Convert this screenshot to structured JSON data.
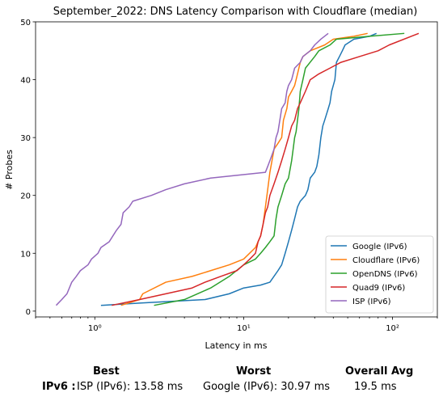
{
  "chart_data": {
    "type": "line",
    "title": "September_2022: DNS Latency Comparison with Cloudflare (median)",
    "xlabel": "Latency in ms",
    "ylabel": "# Probes",
    "xscale": "log",
    "xlim": [
      0.4,
      200
    ],
    "ylim": [
      -1,
      50
    ],
    "xticks": [
      1,
      10,
      100
    ],
    "xtick_labels": [
      "10⁰",
      "10¹",
      "10²"
    ],
    "yticks": [
      0,
      10,
      20,
      30,
      40,
      50
    ],
    "grid": false,
    "legend_position": "lower-right",
    "series": [
      {
        "name": "Google (IPv6)",
        "color": "#1f77b4",
        "points": [
          [
            1.1,
            1
          ],
          [
            2,
            1.4
          ],
          [
            5.5,
            2
          ],
          [
            8,
            3
          ],
          [
            10,
            4
          ],
          [
            13,
            4.5
          ],
          [
            15,
            5
          ],
          [
            17,
            7
          ],
          [
            18,
            8
          ],
          [
            19,
            10
          ],
          [
            20,
            12
          ],
          [
            21,
            14
          ],
          [
            22,
            16
          ],
          [
            23,
            18
          ],
          [
            24,
            19
          ],
          [
            26,
            20
          ],
          [
            27,
            21
          ],
          [
            28,
            23
          ],
          [
            30,
            24
          ],
          [
            31,
            25
          ],
          [
            32,
            27
          ],
          [
            33,
            30
          ],
          [
            34,
            32
          ],
          [
            35,
            33
          ],
          [
            37,
            35
          ],
          [
            38,
            36
          ],
          [
            39,
            38
          ],
          [
            40,
            39
          ],
          [
            41,
            40
          ],
          [
            42,
            43
          ],
          [
            44,
            44
          ],
          [
            46,
            45
          ],
          [
            48,
            46
          ],
          [
            55,
            47
          ],
          [
            70,
            47.5
          ],
          [
            78,
            48
          ]
        ]
      },
      {
        "name": "Cloudflare (IPv6)",
        "color": "#ff7f0e",
        "points": [
          [
            1.5,
            1
          ],
          [
            2,
            2
          ],
          [
            2.1,
            3
          ],
          [
            3,
            5
          ],
          [
            4.5,
            6
          ],
          [
            6,
            7
          ],
          [
            8,
            8
          ],
          [
            10,
            9
          ],
          [
            12,
            11
          ],
          [
            13,
            13
          ],
          [
            13.5,
            15
          ],
          [
            14,
            18
          ],
          [
            14.5,
            21
          ],
          [
            15,
            24
          ],
          [
            15.5,
            26
          ],
          [
            16,
            28
          ],
          [
            17,
            29
          ],
          [
            18,
            30
          ],
          [
            18.5,
            33
          ],
          [
            19.5,
            35
          ],
          [
            20,
            37
          ],
          [
            21,
            38
          ],
          [
            22,
            39
          ],
          [
            22.5,
            40
          ],
          [
            23,
            41
          ],
          [
            24,
            43
          ],
          [
            25,
            44
          ],
          [
            28,
            45
          ],
          [
            35,
            46
          ],
          [
            40,
            47
          ],
          [
            55,
            47.5
          ],
          [
            68,
            48
          ]
        ]
      },
      {
        "name": "OpenDNS (IPv6)",
        "color": "#2ca02c",
        "points": [
          [
            2.5,
            1
          ],
          [
            4,
            2
          ],
          [
            6,
            4
          ],
          [
            8,
            6
          ],
          [
            10,
            8
          ],
          [
            12,
            9
          ],
          [
            13,
            10
          ],
          [
            14,
            11
          ],
          [
            15,
            12
          ],
          [
            16,
            13
          ],
          [
            16.5,
            16
          ],
          [
            17,
            18
          ],
          [
            18,
            20
          ],
          [
            19,
            22
          ],
          [
            20,
            23
          ],
          [
            21,
            26
          ],
          [
            21.5,
            28
          ],
          [
            22,
            30
          ],
          [
            22.5,
            31
          ],
          [
            23,
            33
          ],
          [
            23.5,
            35
          ],
          [
            24,
            38
          ],
          [
            25,
            40
          ],
          [
            26,
            42
          ],
          [
            30,
            44
          ],
          [
            32,
            45
          ],
          [
            38,
            46
          ],
          [
            42,
            47
          ],
          [
            70,
            47.5
          ],
          [
            120,
            48
          ]
        ]
      },
      {
        "name": "Quad9 (IPv6)",
        "color": "#d62728",
        "points": [
          [
            1.3,
            1
          ],
          [
            2,
            2
          ],
          [
            3,
            3
          ],
          [
            4.5,
            4
          ],
          [
            5.5,
            5
          ],
          [
            7,
            6
          ],
          [
            9,
            7
          ],
          [
            10,
            8
          ],
          [
            11,
            9
          ],
          [
            12,
            10
          ],
          [
            12.5,
            12
          ],
          [
            13,
            13
          ],
          [
            13.5,
            15
          ],
          [
            14,
            17
          ],
          [
            14.5,
            18
          ],
          [
            15,
            20
          ],
          [
            16,
            22
          ],
          [
            17,
            24
          ],
          [
            18,
            26
          ],
          [
            19,
            28
          ],
          [
            20,
            30
          ],
          [
            21,
            32
          ],
          [
            22,
            33
          ],
          [
            23,
            35
          ],
          [
            24,
            36
          ],
          [
            26,
            38
          ],
          [
            28,
            40
          ],
          [
            32,
            41
          ],
          [
            38,
            42
          ],
          [
            45,
            43
          ],
          [
            60,
            44
          ],
          [
            80,
            45
          ],
          [
            95,
            46
          ],
          [
            150,
            48
          ]
        ]
      },
      {
        "name": "ISP (IPv6)",
        "color": "#9467bd",
        "points": [
          [
            0.55,
            1
          ],
          [
            0.6,
            2
          ],
          [
            0.65,
            3
          ],
          [
            0.7,
            5
          ],
          [
            0.75,
            6
          ],
          [
            0.8,
            7
          ],
          [
            0.9,
            8
          ],
          [
            0.95,
            9
          ],
          [
            1.05,
            10
          ],
          [
            1.1,
            11
          ],
          [
            1.25,
            12
          ],
          [
            1.4,
            14
          ],
          [
            1.5,
            15
          ],
          [
            1.55,
            17
          ],
          [
            1.7,
            18
          ],
          [
            1.8,
            19
          ],
          [
            2.4,
            20
          ],
          [
            3,
            21
          ],
          [
            4,
            22
          ],
          [
            6,
            23
          ],
          [
            14,
            24
          ],
          [
            14.5,
            25
          ],
          [
            15,
            26
          ],
          [
            15.5,
            27
          ],
          [
            16,
            28
          ],
          [
            16.5,
            30
          ],
          [
            17,
            31
          ],
          [
            17.5,
            33
          ],
          [
            18,
            35
          ],
          [
            19,
            36
          ],
          [
            19.5,
            38
          ],
          [
            20,
            39
          ],
          [
            21,
            40
          ],
          [
            22,
            42
          ],
          [
            24,
            43
          ],
          [
            25,
            44
          ],
          [
            28,
            45
          ],
          [
            30,
            46
          ],
          [
            33,
            47
          ],
          [
            37,
            48
          ]
        ]
      }
    ]
  },
  "summary": {
    "best_header": "Best",
    "worst_header": "Worst",
    "avg_header": "Overall Avg",
    "row_label": "IPv6 :",
    "best_value": "ISP (IPv6): 13.58 ms",
    "worst_value": "Google (IPv6): 30.97 ms",
    "avg_value": "19.5 ms"
  }
}
